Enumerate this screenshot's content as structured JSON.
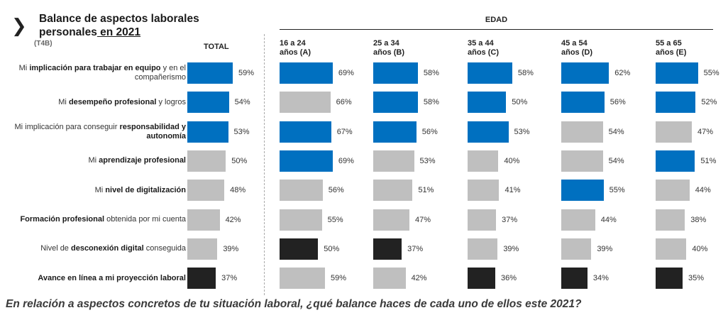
{
  "chart_data": {
    "type": "bar",
    "orientation": "horizontal",
    "title_part1": "Balance de aspectos laborales",
    "title_part2": "personales",
    "title_part3": " en 2021",
    "code": "(T4B)",
    "group_header": "EDAD",
    "question": "En relación a aspectos concretos de tu situación laboral, ¿qué balance haces de cada uno de ellos este 2021?",
    "categories": [
      {
        "pre": "Mi ",
        "bold": "implicación para trabajar en equipo",
        "post": " y en el compañerismo"
      },
      {
        "pre": "Mi ",
        "bold": "desempeño profesional",
        "post": " y logros"
      },
      {
        "pre": "Mi implicación para conseguir ",
        "bold": "responsabilidad y autonomía",
        "post": ""
      },
      {
        "pre": "Mi ",
        "bold": "aprendizaje profesional",
        "post": ""
      },
      {
        "pre": "Mi ",
        "bold": "nivel de digitalización",
        "post": ""
      },
      {
        "pre": "",
        "bold": "Formación profesional",
        "post": " obtenida por mi cuenta"
      },
      {
        "pre": "Nivel de ",
        "bold": "desconexión digital",
        "post": " conseguida"
      },
      {
        "pre": "",
        "bold": "Avance en línea a mi proyección laboral",
        "post": ""
      }
    ],
    "colors": {
      "high": "#0070c0",
      "mid": "#bfbfbf",
      "low": "#222222"
    },
    "unit": "%",
    "series": [
      {
        "name": "TOTAL",
        "name2": "",
        "values": [
          59,
          54,
          53,
          50,
          48,
          42,
          39,
          37
        ],
        "levels": [
          "high",
          "high",
          "high",
          "mid",
          "mid",
          "mid",
          "mid",
          "low"
        ]
      },
      {
        "name": "16 a 24",
        "name2": "años (A)",
        "values": [
          69,
          66,
          67,
          69,
          56,
          55,
          50,
          59
        ],
        "levels": [
          "high",
          "mid",
          "high",
          "high",
          "mid",
          "mid",
          "low",
          "mid"
        ]
      },
      {
        "name": "25 a 34",
        "name2": "años (B)",
        "values": [
          58,
          58,
          56,
          53,
          51,
          47,
          37,
          42
        ],
        "levels": [
          "high",
          "high",
          "high",
          "mid",
          "mid",
          "mid",
          "low",
          "mid"
        ]
      },
      {
        "name": "35 a 44",
        "name2": "años (C)",
        "values": [
          58,
          50,
          53,
          40,
          41,
          37,
          39,
          36
        ],
        "levels": [
          "high",
          "high",
          "high",
          "mid",
          "mid",
          "mid",
          "mid",
          "low"
        ]
      },
      {
        "name": "45 a 54",
        "name2": "años (D)",
        "values": [
          62,
          56,
          54,
          54,
          55,
          44,
          39,
          34
        ],
        "levels": [
          "high",
          "high",
          "mid",
          "mid",
          "high",
          "mid",
          "mid",
          "low"
        ]
      },
      {
        "name": "55 a 65",
        "name2": "años (E)",
        "values": [
          55,
          52,
          47,
          51,
          44,
          38,
          40,
          35
        ],
        "levels": [
          "high",
          "high",
          "mid",
          "high",
          "mid",
          "mid",
          "mid",
          "low"
        ]
      }
    ]
  }
}
